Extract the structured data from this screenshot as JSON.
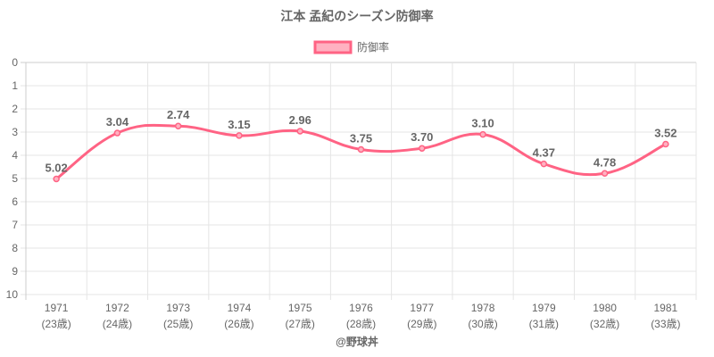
{
  "chart_data": {
    "type": "line",
    "title": "江本 孟紀のシーズン防御率",
    "legend": [
      "防御率"
    ],
    "legend_position": "top",
    "categories": [
      "1971",
      "1972",
      "1973",
      "1974",
      "1975",
      "1976",
      "1977",
      "1978",
      "1979",
      "1980",
      "1981"
    ],
    "sublabels": [
      "(23歳)",
      "(24歳)",
      "(25歳)",
      "(26歳)",
      "(27歳)",
      "(28歳)",
      "(29歳)",
      "(30歳)",
      "(31歳)",
      "(32歳)",
      "(33歳)"
    ],
    "series": [
      {
        "name": "防御率",
        "values": [
          5.02,
          3.04,
          2.74,
          3.15,
          2.96,
          3.75,
          3.7,
          3.1,
          4.37,
          4.78,
          3.52
        ],
        "labels": [
          "5.02",
          "3.04",
          "2.74",
          "3.15",
          "2.96",
          "3.75",
          "3.70",
          "3.10",
          "4.37",
          "4.78",
          "3.52"
        ]
      }
    ],
    "ylim": [
      0,
      10
    ],
    "y_reversed": true,
    "yticks": [
      "0",
      "1",
      "2",
      "3",
      "4",
      "5",
      "6",
      "7",
      "8",
      "9",
      "10"
    ],
    "grid": true,
    "line_color": "#ff6384",
    "fill_color": "#ffb1c1",
    "credit": "@野球丼"
  }
}
